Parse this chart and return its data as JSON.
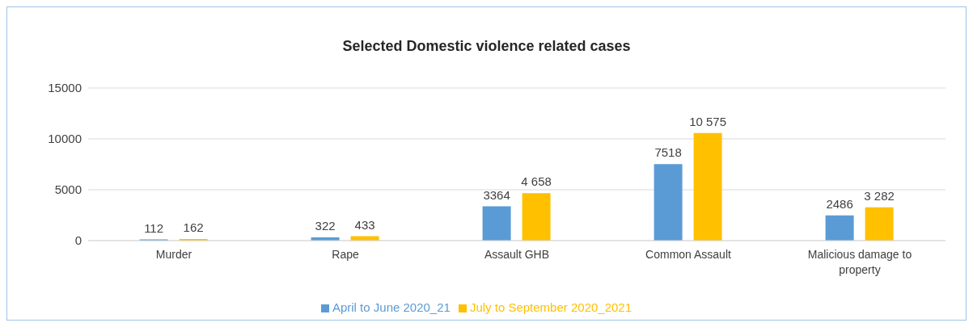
{
  "chart_data": {
    "type": "bar",
    "title": "Selected Domestic violence related cases",
    "categories": [
      "Murder",
      "Rape",
      "Assault GHB",
      "Common Assault",
      "Malicious damage to property"
    ],
    "series": [
      {
        "name": "April to June 2020_21",
        "color": "#5b9bd5",
        "values": [
          112,
          322,
          3364,
          7518,
          2486
        ],
        "value_labels": [
          "112",
          "322",
          "3364",
          "7518",
          "2486"
        ]
      },
      {
        "name": "July to September 2020_2021",
        "color": "#ffc000",
        "values": [
          162,
          433,
          4658,
          10575,
          3282
        ],
        "value_labels": [
          "162",
          "433",
          "4 658",
          "10 575",
          "3 282"
        ]
      }
    ],
    "ylim": [
      0,
      15000
    ],
    "yticks": [
      0,
      5000,
      10000,
      15000
    ],
    "grid": "y",
    "legend": "bottom"
  }
}
